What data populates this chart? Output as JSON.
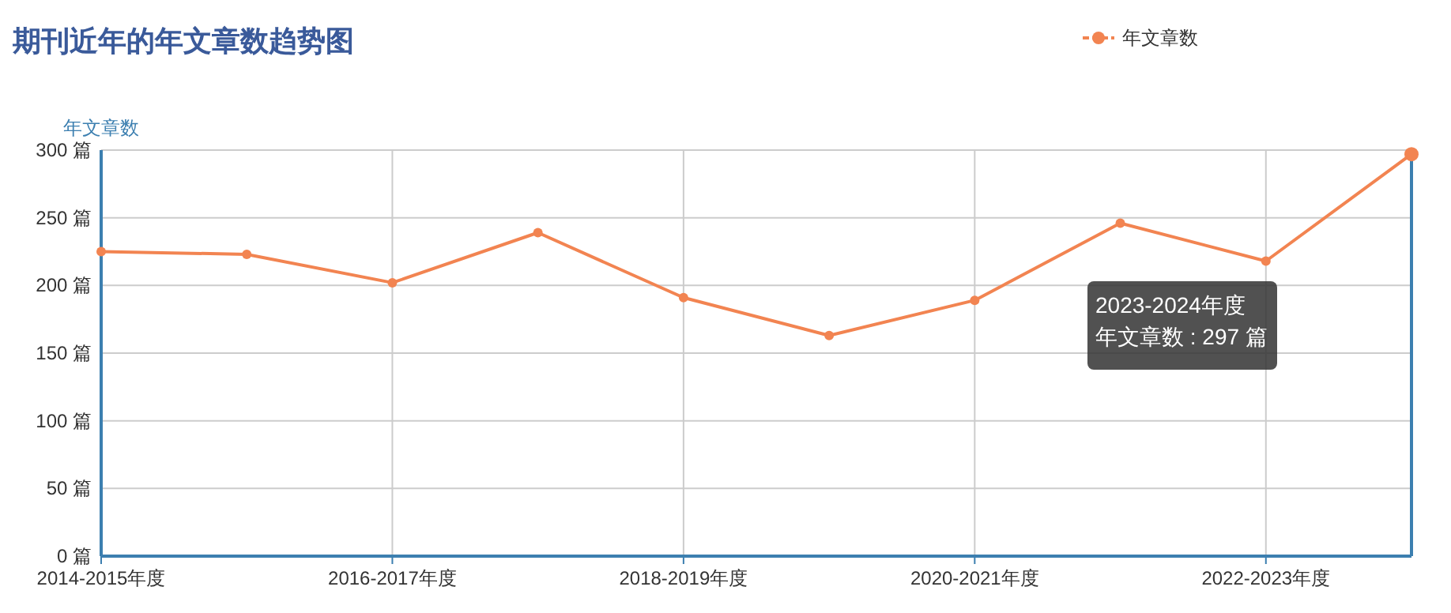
{
  "chart_data": {
    "type": "line",
    "title": "期刊近年的年文章数趋势图",
    "ylabel": "年文章数",
    "categories": [
      "2014-2015年度",
      null,
      "2016-2017年度",
      null,
      "2018-2019年度",
      null,
      "2020-2021年度",
      null,
      "2022-2023年度",
      null
    ],
    "series": [
      {
        "name": "年文章数",
        "color": "#f28451",
        "values": [
          225,
          223,
          202,
          239,
          191,
          163,
          189,
          246,
          218,
          297
        ]
      }
    ],
    "ylim": [
      0,
      300
    ],
    "yticks": [
      {
        "value": 0,
        "label": "0 篇"
      },
      {
        "value": 50,
        "label": "50 篇"
      },
      {
        "value": 100,
        "label": "100 篇"
      },
      {
        "value": 150,
        "label": "150 篇"
      },
      {
        "value": 200,
        "label": "200 篇"
      },
      {
        "value": 250,
        "label": "250 篇"
      },
      {
        "value": 300,
        "label": "300 篇"
      }
    ],
    "annotations": [
      "2023-2024年度",
      "年文章数 : 297 篇"
    ],
    "grid": true,
    "legend": "top right",
    "marker": "circle",
    "line_style": "solid"
  }
}
